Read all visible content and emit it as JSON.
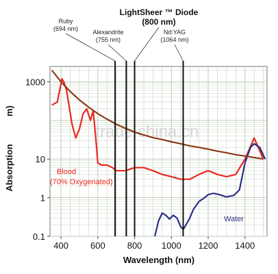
{
  "chart_data": {
    "type": "line",
    "header_line1": "LightSheer ™ Diode",
    "header_line2": "(800 nm)",
    "xlabel": "Wavelength (nm)",
    "ylabel": "Absorption",
    "ylabel_unit_fragment": "m)",
    "xlim": [
      340,
      1520
    ],
    "ylim": [
      0.1,
      2500
    ],
    "y_scale": "log",
    "x_ticks": [
      400,
      600,
      800,
      1000,
      1200,
      1400
    ],
    "x_tick_labels": [
      "400",
      "600",
      "800",
      "1000",
      "1200",
      "1400"
    ],
    "y_ticks": [
      0.1,
      1,
      10,
      1000
    ],
    "y_tick_labels": [
      "0.1",
      "1",
      "10",
      "1000"
    ],
    "grid": true,
    "colors": {
      "blood": "#e8281e",
      "water": "#2a2f86",
      "melanin": "#8b3a16",
      "laser": "#111111",
      "grid": "#b8c8b0"
    },
    "lasers": [
      {
        "label": "Ruby",
        "sub": "(694 nm)",
        "wavelength": 694
      },
      {
        "label": "Alexandrite",
        "sub": "(755 nm)",
        "wavelength": 755
      },
      {
        "label": "",
        "sub": "",
        "wavelength": 800
      },
      {
        "label": "Nd:YAG",
        "sub": "(1064 nm)",
        "wavelength": 1064
      }
    ],
    "series": [
      {
        "name": "Blood",
        "name2": "(70% Oxygenated)",
        "x": [
          350,
          380,
          405,
          415,
          430,
          460,
          480,
          500,
          520,
          540,
          560,
          575,
          590,
          600,
          620,
          650,
          680,
          700,
          750,
          800,
          850,
          900,
          950,
          1000,
          1050,
          1100,
          1150,
          1200,
          1250,
          1300,
          1350,
          1400,
          1450,
          1500
        ],
        "y": [
          250,
          300,
          1200,
          1000,
          600,
          80,
          35,
          60,
          150,
          200,
          100,
          180,
          30,
          8,
          7,
          7,
          6,
          5,
          5,
          6,
          6,
          5,
          4,
          3.5,
          3,
          3,
          4,
          5,
          4,
          3.5,
          4,
          10,
          35,
          10
        ]
      },
      {
        "name": "Water",
        "x": [
          910,
          930,
          950,
          970,
          990,
          1010,
          1030,
          1050,
          1064,
          1080,
          1100,
          1120,
          1150,
          1180,
          1200,
          1230,
          1260,
          1300,
          1340,
          1370,
          1400,
          1430,
          1450,
          1480,
          1510
        ],
        "y": [
          0.1,
          0.25,
          0.4,
          0.35,
          0.28,
          0.35,
          0.3,
          0.18,
          0.15,
          0.2,
          0.3,
          0.5,
          0.8,
          1.0,
          1.2,
          1.3,
          1.2,
          1.05,
          1.15,
          1.6,
          8,
          20,
          25,
          20,
          10
        ]
      },
      {
        "name": "",
        "x": [
          350,
          400,
          450,
          500,
          550,
          600,
          650,
          700,
          750,
          800,
          850,
          900,
          950,
          1000,
          1050,
          1100,
          1150,
          1200,
          1250,
          1300,
          1350,
          1400,
          1450,
          1500
        ],
        "y": [
          2000,
          1000,
          560,
          340,
          220,
          150,
          108,
          80,
          62,
          50,
          42,
          36,
          32,
          28,
          25,
          22,
          20,
          18,
          16,
          14.5,
          13,
          12,
          11,
          10
        ]
      }
    ]
  },
  "watermark": "trade.china.cn"
}
